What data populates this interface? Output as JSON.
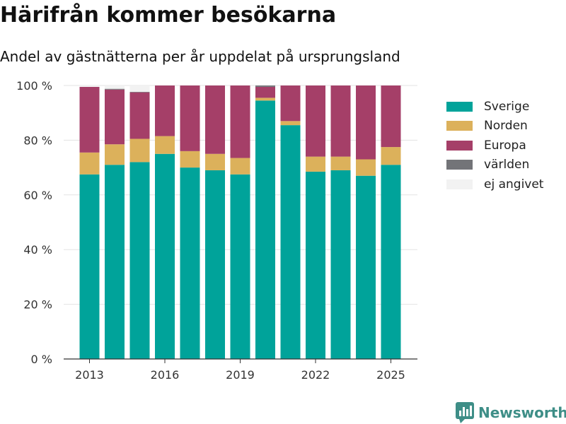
{
  "header": {
    "title": "Härifrån kommer besökarna",
    "subtitle": "Andel av gästnätterna per år uppdelat på ursprungsland"
  },
  "brand": {
    "label": "Newsworthy",
    "icon": "bar-chart-bubble-icon"
  },
  "chart_data": {
    "type": "bar",
    "stacked": true,
    "title": "Härifrån kommer besökarna",
    "subtitle": "Andel av gästnätterna per år uppdelat på ursprungsland",
    "xlabel": "",
    "ylabel": "",
    "x": [
      2013,
      2014,
      2015,
      2016,
      2017,
      2018,
      2019,
      2020,
      2021,
      2022,
      2023,
      2024,
      2025
    ],
    "xticks": [
      2013,
      2016,
      2019,
      2022,
      2025
    ],
    "ylim": [
      0,
      100
    ],
    "yticks": [
      0,
      20,
      40,
      60,
      80,
      100
    ],
    "ytick_labels": [
      "0 %",
      "20 %",
      "40 %",
      "60 %",
      "80 %",
      "100 %"
    ],
    "grid": true,
    "legend_position": "right",
    "series": [
      {
        "name": "Sverige",
        "color": "#00a39a",
        "values": [
          67.5,
          71,
          72,
          75,
          70,
          69,
          67.5,
          94.5,
          85.5,
          68.5,
          69,
          67,
          71
        ]
      },
      {
        "name": "Norden",
        "color": "#dcb15b",
        "values": [
          8,
          7.5,
          8.5,
          6.5,
          6,
          6,
          6,
          1,
          1.5,
          5.5,
          5,
          6,
          6.5
        ]
      },
      {
        "name": "Europa",
        "color": "#a53f68",
        "values": [
          24,
          20,
          17,
          18.5,
          24,
          25,
          26.5,
          4,
          13,
          26,
          26,
          27,
          22.5
        ]
      },
      {
        "name": "världen",
        "color": "#737478",
        "values": [
          0,
          0.3,
          0.2,
          0,
          0,
          0,
          0,
          0.5,
          0,
          0,
          0,
          0,
          0
        ]
      },
      {
        "name": "ej angivet",
        "color": "#f2f2f2",
        "values": [
          0.5,
          1.2,
          2.3,
          0,
          0,
          0,
          0,
          0,
          0,
          0,
          0,
          0,
          0
        ]
      }
    ]
  }
}
